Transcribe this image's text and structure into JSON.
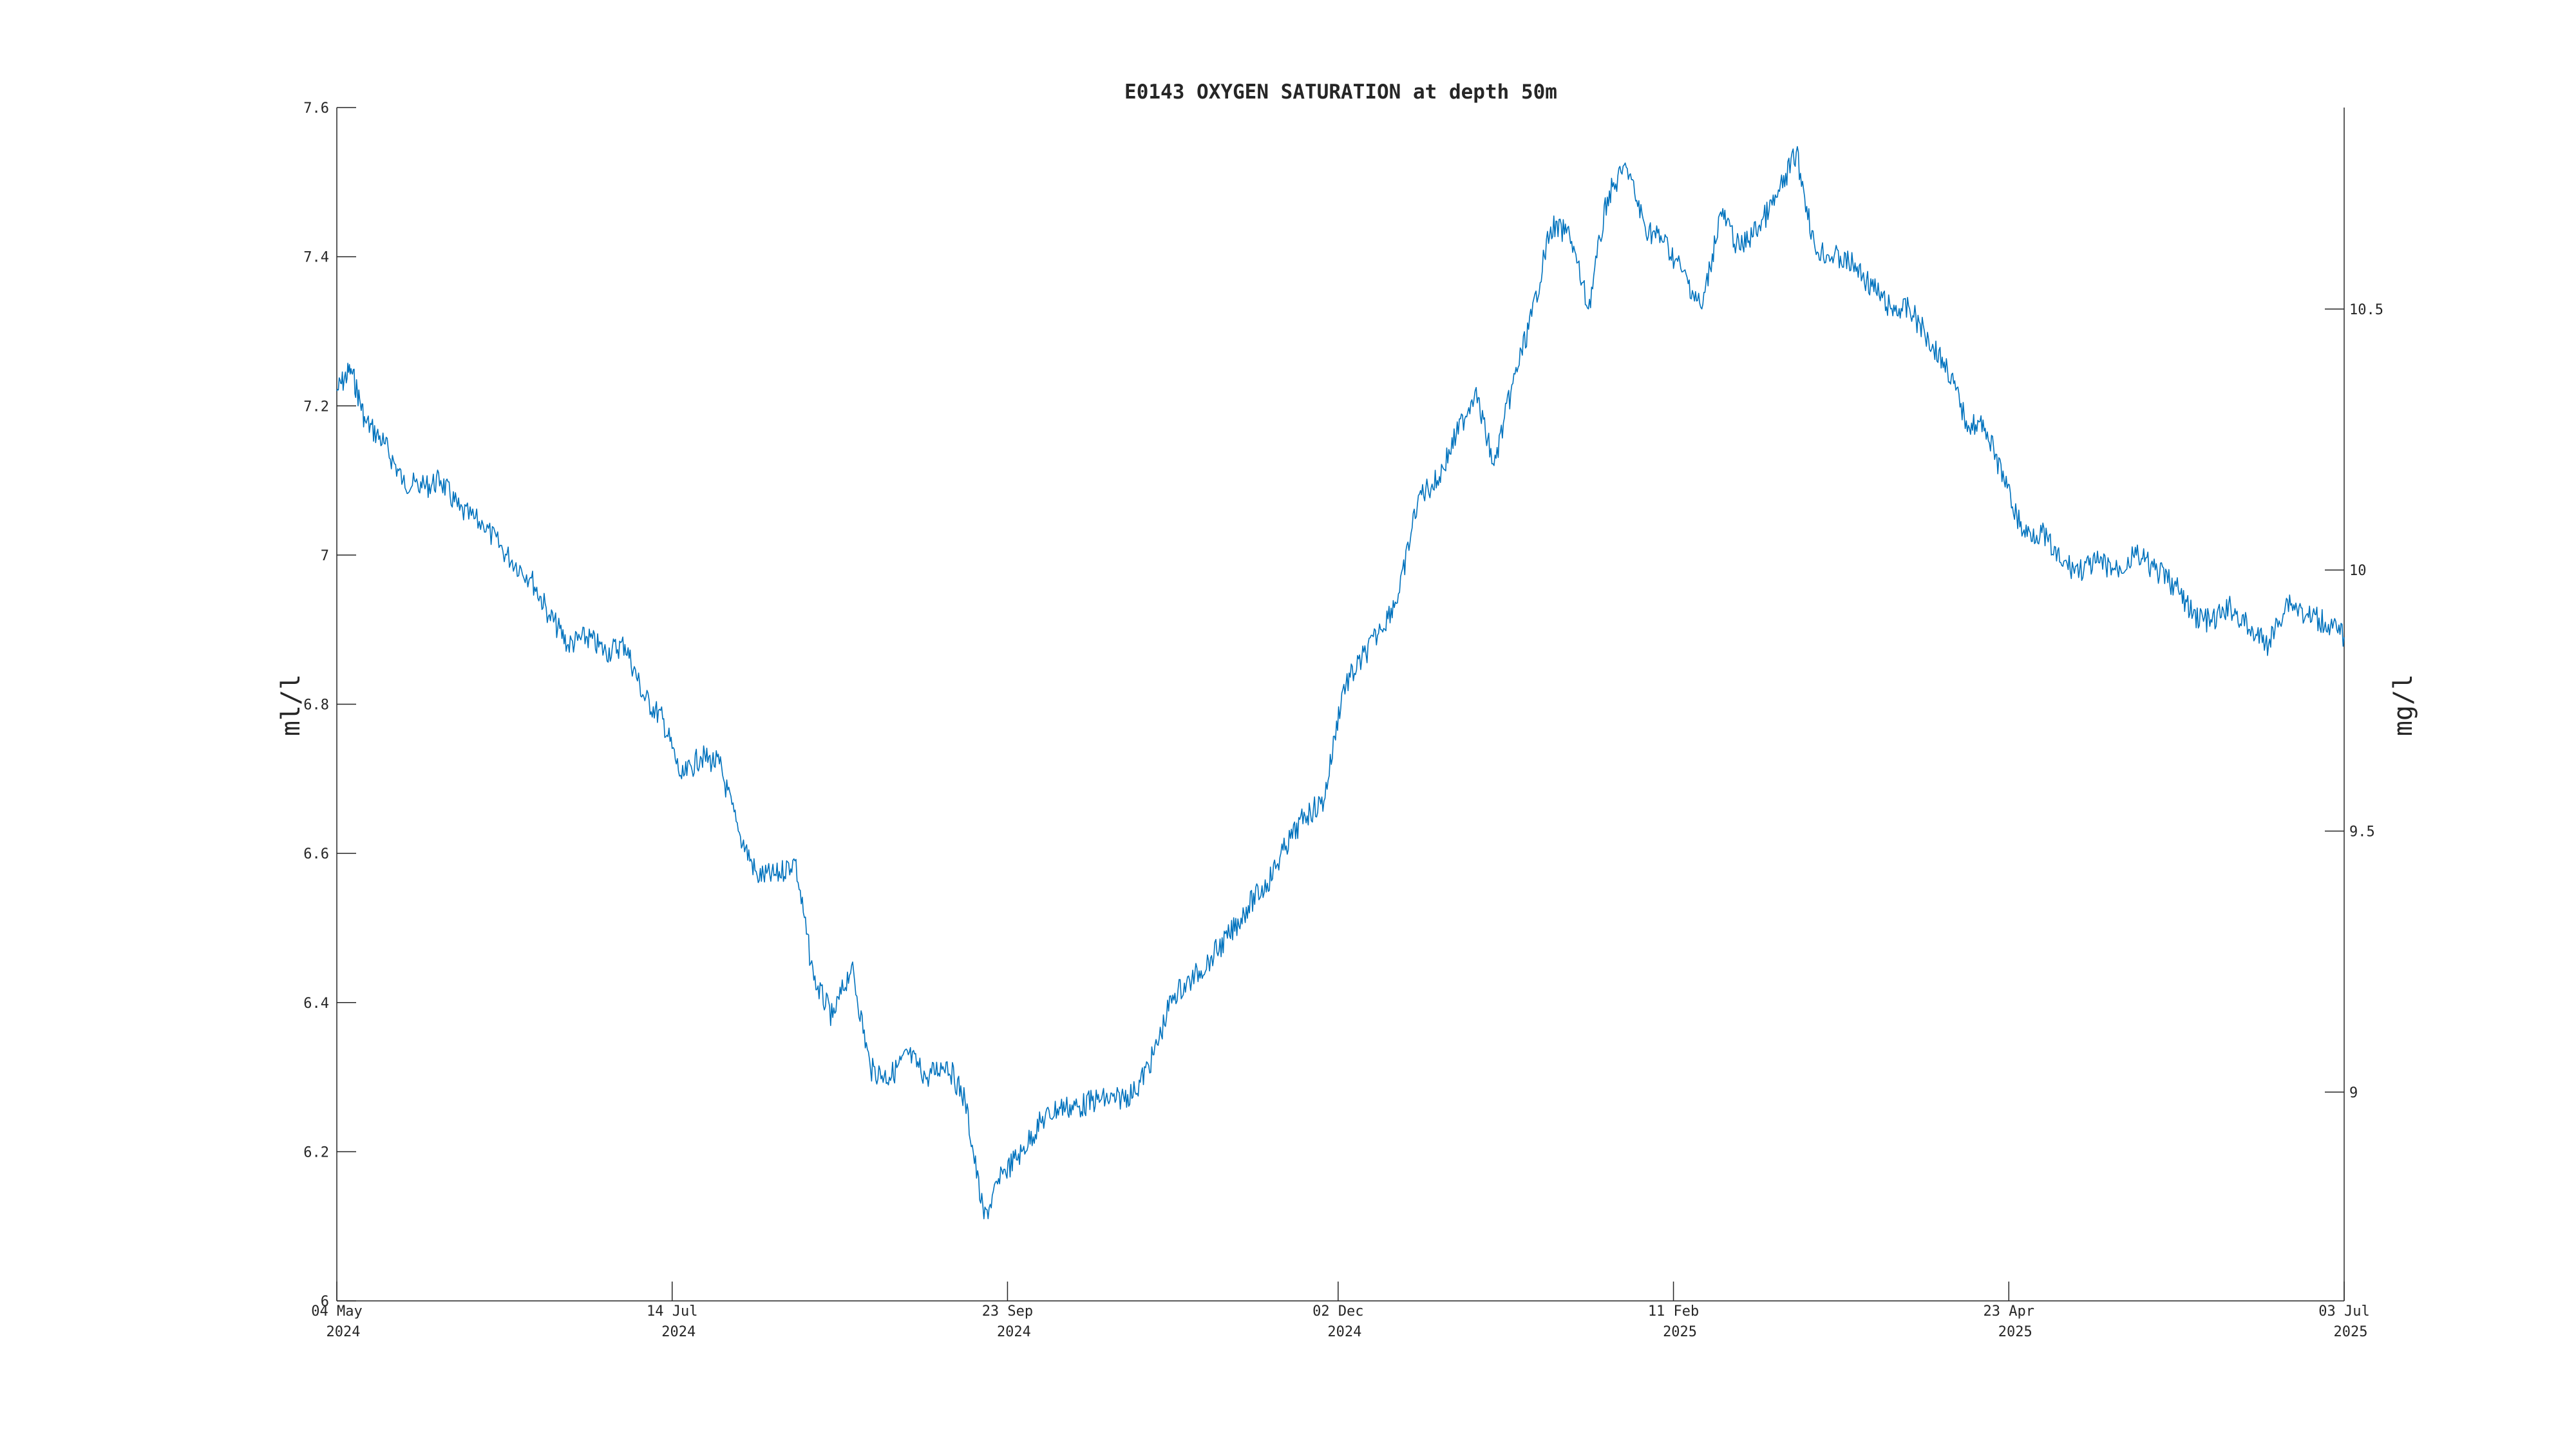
{
  "chart_data": {
    "type": "line",
    "title": "E0143 OXYGEN SATURATION at depth 50m",
    "ylabel": "ml/l",
    "y2label": "mg/l",
    "xlim": [
      "2024-05-04",
      "2025-07-03"
    ],
    "ylim": [
      6.0,
      7.6
    ],
    "y2lim": [
      8.6,
      10.886
    ],
    "yticks": [
      6,
      6.2,
      6.4,
      6.6,
      6.8,
      7,
      7.2,
      7.4,
      7.6
    ],
    "ytick_labels": [
      "6",
      "6.2",
      "6.4",
      "6.6",
      "6.8",
      "7",
      "7.2",
      "7.4",
      "7.6"
    ],
    "y2ticks": [
      9,
      9.5,
      10,
      10.5
    ],
    "y2tick_labels": [
      "9",
      "9.5",
      "10",
      "10.5"
    ],
    "xticks": [
      {
        "date": "2024-05-04",
        "line1": "04 May",
        "line2": "2024"
      },
      {
        "date": "2024-07-14",
        "line1": "14 Jul",
        "line2": "2024"
      },
      {
        "date": "2024-09-23",
        "line1": "23 Sep",
        "line2": "2024"
      },
      {
        "date": "2024-12-02",
        "line1": "02 Dec",
        "line2": "2024"
      },
      {
        "date": "2025-02-11",
        "line1": "11 Feb",
        "line2": "2025"
      },
      {
        "date": "2025-04-23",
        "line1": "23 Apr",
        "line2": "2025"
      },
      {
        "date": "2025-07-03",
        "line1": "03 Jul",
        "line2": "2025"
      }
    ],
    "grid": false,
    "series": [
      {
        "color": "#0072BD",
        "x": [
          "2024-05-04",
          "2024-05-07",
          "2024-05-10",
          "2024-05-14",
          "2024-05-18",
          "2024-05-22",
          "2024-05-26",
          "2024-05-30",
          "2024-06-04",
          "2024-06-09",
          "2024-06-14",
          "2024-06-18",
          "2024-06-22",
          "2024-06-26",
          "2024-06-30",
          "2024-07-04",
          "2024-07-08",
          "2024-07-12",
          "2024-07-16",
          "2024-07-20",
          "2024-07-24",
          "2024-07-28",
          "2024-08-01",
          "2024-08-05",
          "2024-08-09",
          "2024-08-13",
          "2024-08-17",
          "2024-08-21",
          "2024-08-25",
          "2024-08-29",
          "2024-09-02",
          "2024-09-06",
          "2024-09-10",
          "2024-09-14",
          "2024-09-18",
          "2024-09-22",
          "2024-09-26",
          "2024-09-30",
          "2024-10-04",
          "2024-10-08",
          "2024-10-12",
          "2024-10-16",
          "2024-10-20",
          "2024-10-24",
          "2024-10-28",
          "2024-11-01",
          "2024-11-05",
          "2024-11-09",
          "2024-11-13",
          "2024-11-17",
          "2024-11-21",
          "2024-11-25",
          "2024-11-29",
          "2024-12-03",
          "2024-12-07",
          "2024-12-11",
          "2024-12-15",
          "2024-12-19",
          "2024-12-23",
          "2024-12-27",
          "2024-12-31",
          "2025-01-04",
          "2025-01-08",
          "2025-01-12",
          "2025-01-16",
          "2025-01-20",
          "2025-01-24",
          "2025-01-28",
          "2025-02-01",
          "2025-02-05",
          "2025-02-09",
          "2025-02-13",
          "2025-02-17",
          "2025-02-21",
          "2025-02-25",
          "2025-03-01",
          "2025-03-05",
          "2025-03-09",
          "2025-03-13",
          "2025-03-17",
          "2025-03-21",
          "2025-03-25",
          "2025-03-29",
          "2025-04-02",
          "2025-04-06",
          "2025-04-10",
          "2025-04-14",
          "2025-04-18",
          "2025-04-22",
          "2025-04-26",
          "2025-04-30",
          "2025-05-04",
          "2025-05-08",
          "2025-05-12",
          "2025-05-16",
          "2025-05-20",
          "2025-05-24",
          "2025-05-28",
          "2025-06-01",
          "2025-06-05",
          "2025-06-09",
          "2025-06-13",
          "2025-06-17",
          "2025-06-21",
          "2025-06-25",
          "2025-06-29",
          "2025-07-03"
        ],
        "y": [
          7.22,
          7.25,
          7.18,
          7.15,
          7.1,
          7.09,
          7.1,
          7.06,
          7.04,
          7.0,
          6.97,
          6.92,
          6.88,
          6.89,
          6.87,
          6.88,
          6.81,
          6.78,
          6.7,
          6.73,
          6.72,
          6.63,
          6.57,
          6.57,
          6.59,
          6.43,
          6.38,
          6.45,
          6.31,
          6.3,
          6.33,
          6.3,
          6.32,
          6.27,
          6.11,
          6.17,
          6.2,
          6.24,
          6.26,
          6.26,
          6.27,
          6.27,
          6.28,
          6.33,
          6.41,
          6.43,
          6.46,
          6.49,
          6.53,
          6.56,
          6.61,
          6.65,
          6.67,
          6.82,
          6.86,
          6.9,
          6.95,
          7.08,
          7.1,
          7.16,
          7.22,
          7.12,
          7.23,
          7.32,
          7.44,
          7.43,
          7.33,
          7.48,
          7.52,
          7.44,
          7.42,
          7.38,
          7.33,
          7.46,
          7.41,
          7.44,
          7.48,
          7.54,
          7.41,
          7.4,
          7.39,
          7.36,
          7.33,
          7.33,
          7.29,
          7.25,
          7.18,
          7.17,
          7.1,
          7.03,
          7.03,
          6.99,
          6.98,
          6.99,
          6.98,
          7.0,
          6.98,
          6.96,
          6.92,
          6.91,
          6.93,
          6.9,
          6.88,
          6.94,
          6.92,
          6.91,
          6.89
        ]
      }
    ]
  }
}
